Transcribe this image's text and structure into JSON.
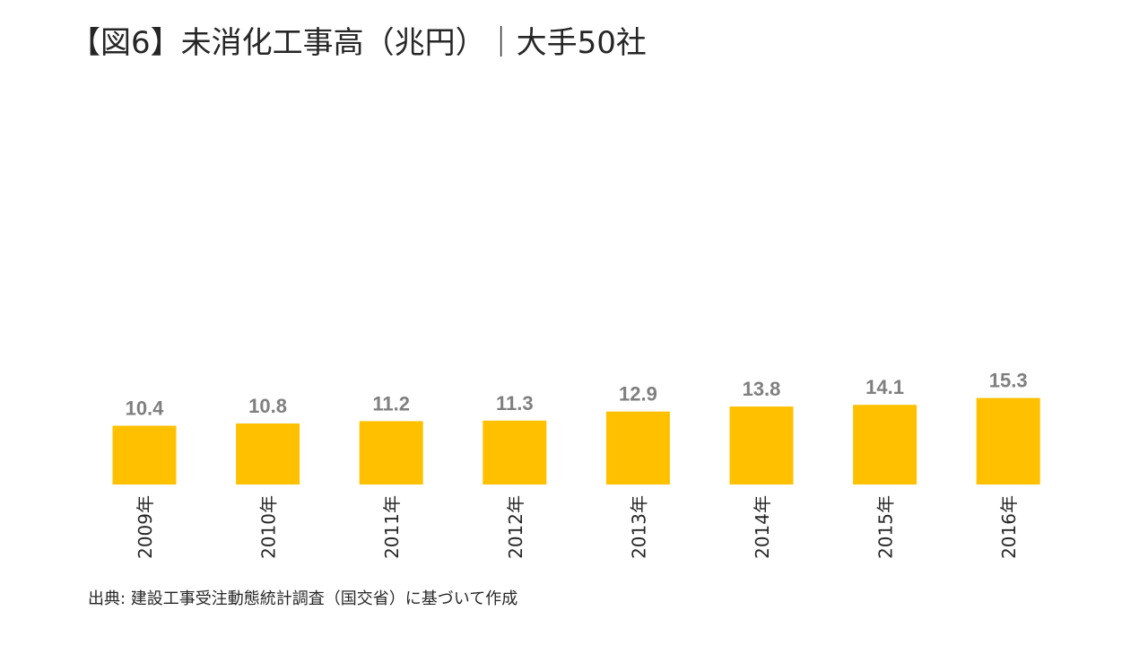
{
  "title": "【図6】未消化工事高（兆円）｜大手50社",
  "source": "出典: 建設工事受注動態統計調査（国交省）に基づいて作成",
  "colors": {
    "bar": "#FFC000",
    "value_label": "#7F7F7F",
    "tick_label": "#262626"
  },
  "chart_data": {
    "type": "bar",
    "title": "【図6】未消化工事高（兆円）｜大手50社",
    "xlabel": "",
    "ylabel": "",
    "categories": [
      "2009年",
      "2010年",
      "2011年",
      "2012年",
      "2013年",
      "2014年",
      "2015年",
      "2016年"
    ],
    "values": [
      10.4,
      10.8,
      11.2,
      11.3,
      12.9,
      13.8,
      14.1,
      15.3
    ],
    "value_labels": [
      "10.4",
      "10.8",
      "11.2",
      "11.3",
      "12.9",
      "13.8",
      "14.1",
      "15.3"
    ],
    "ylim": [
      0,
      15.3
    ],
    "grid": false,
    "legend": "none"
  }
}
